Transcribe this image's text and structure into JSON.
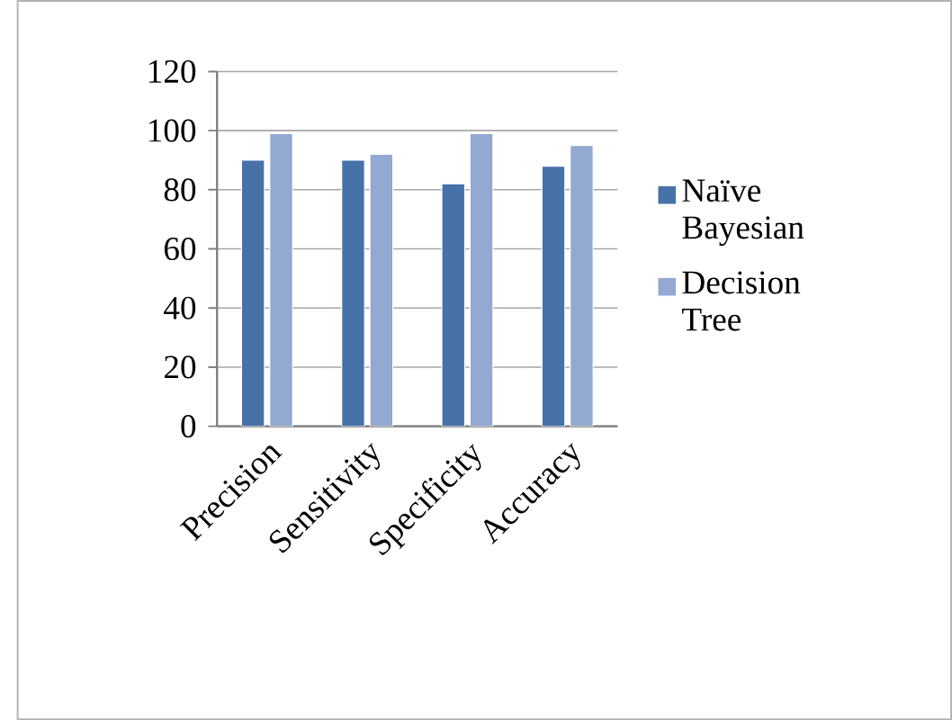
{
  "chart_data": {
    "type": "bar",
    "categories": [
      "Precision",
      "Sensitivity",
      "Specificity",
      "Accuracy"
    ],
    "series": [
      {
        "name": "Naïve Bayesian",
        "color": "#4672a8",
        "values": [
          90,
          90,
          82,
          88
        ]
      },
      {
        "name": "Decision Tree",
        "color": "#94a9d1",
        "values": [
          99,
          92,
          99,
          95
        ]
      }
    ],
    "ylim": [
      0,
      120
    ],
    "yticks": [
      0,
      20,
      40,
      60,
      80,
      100,
      120
    ],
    "grid": "y",
    "legend": "right"
  }
}
